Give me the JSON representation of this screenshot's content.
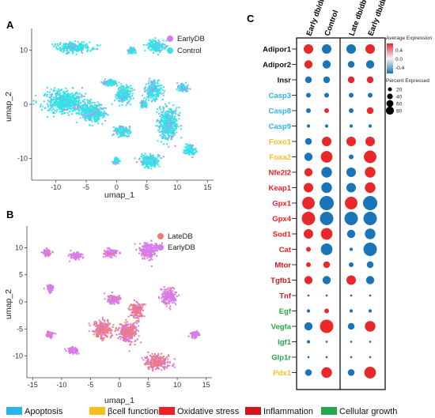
{
  "panels": {
    "a": "A",
    "b": "B",
    "c": "C"
  },
  "chart_data": [
    {
      "type": "scatter",
      "panel": "A",
      "xlabel": "umap_1",
      "ylabel": "umap_2",
      "xlim": [
        -14,
        16
      ],
      "ylim": [
        -14,
        14
      ],
      "xticks": [
        -10,
        -5,
        0,
        5,
        10,
        15
      ],
      "yticks": [
        10,
        0,
        -10
      ],
      "legend": [
        {
          "name": "EarlyDB",
          "color": "#d67cf0"
        },
        {
          "name": "Control",
          "color": "#33e4e6"
        }
      ],
      "clusters": [
        {
          "x": -8.5,
          "y": 0.5,
          "sx": 2.8,
          "sy": 1.8
        },
        {
          "x": -4,
          "y": -1.5,
          "sx": 1.8,
          "sy": 1.6
        },
        {
          "x": -7,
          "y": 10.5,
          "sx": 2.6,
          "sy": 0.8
        },
        {
          "x": 6.5,
          "y": 10.8,
          "sx": 1.3,
          "sy": 0.9
        },
        {
          "x": 6,
          "y": 2.5,
          "sx": 1.2,
          "sy": 1.6
        },
        {
          "x": 1.2,
          "y": 1.8,
          "sx": 1.2,
          "sy": 1.4
        },
        {
          "x": -1,
          "y": 4,
          "sx": 1.1,
          "sy": 0.5
        },
        {
          "x": 8.5,
          "y": -3.5,
          "sx": 1.5,
          "sy": 2.5
        },
        {
          "x": 1,
          "y": -5,
          "sx": 1.2,
          "sy": 0.8
        },
        {
          "x": 5.5,
          "y": -10.5,
          "sx": 1.5,
          "sy": 1.1
        },
        {
          "x": 0,
          "y": -10.5,
          "sx": 0.5,
          "sy": 0.5
        },
        {
          "x": 12,
          "y": -8.5,
          "sx": 0.8,
          "sy": 0.9
        },
        {
          "x": 11,
          "y": 3,
          "sx": 0.8,
          "sy": 0.6
        },
        {
          "x": 2.5,
          "y": 10,
          "sx": 0.5,
          "sy": 0.5
        },
        {
          "x": 4.5,
          "y": 0,
          "sx": 0.5,
          "sy": 0.5
        }
      ]
    },
    {
      "type": "scatter",
      "panel": "B",
      "xlabel": "umap_1",
      "ylabel": "umap_2",
      "xlim": [
        -16,
        16
      ],
      "ylim": [
        -14,
        14
      ],
      "xticks": [
        -15,
        -10,
        -5,
        0,
        5,
        10,
        15
      ],
      "yticks": [
        10,
        5,
        0,
        -5,
        -10
      ],
      "legend": [
        {
          "name": "LateDB",
          "color": "#f07a70"
        },
        {
          "name": "EarlyDB",
          "color": "#d67cf0"
        }
      ],
      "clusters": [
        {
          "x": -12.5,
          "y": 9,
          "sx": 0.7,
          "sy": 0.5
        },
        {
          "x": -7.5,
          "y": 8.5,
          "sx": 1.0,
          "sy": 0.6
        },
        {
          "x": -1.5,
          "y": 9,
          "sx": 1.1,
          "sy": 0.6
        },
        {
          "x": 5,
          "y": 9.5,
          "sx": 1.4,
          "sy": 1.3
        },
        {
          "x": -3,
          "y": -5,
          "sx": 1.4,
          "sy": 1.4
        },
        {
          "x": 1.5,
          "y": -5.5,
          "sx": 1.5,
          "sy": 1.6
        },
        {
          "x": -1,
          "y": 0.5,
          "sx": 1.0,
          "sy": 0.7
        },
        {
          "x": 6.5,
          "y": -11,
          "sx": 1.8,
          "sy": 1.2
        },
        {
          "x": 3,
          "y": -1.5,
          "sx": 1.0,
          "sy": 1.3
        },
        {
          "x": -8,
          "y": -9,
          "sx": 0.8,
          "sy": 0.6
        },
        {
          "x": -12,
          "y": -6,
          "sx": 0.6,
          "sy": 0.5
        },
        {
          "x": 8.5,
          "y": 1,
          "sx": 1.2,
          "sy": 1.4
        },
        {
          "x": -12,
          "y": 2.5,
          "sx": 0.6,
          "sy": 0.5
        },
        {
          "x": 13,
          "y": -6,
          "sx": 0.6,
          "sy": 0.5
        }
      ]
    },
    {
      "type": "dotplot",
      "panel": "C",
      "columns": [
        "Early db/db",
        "Control",
        "Late db/db",
        "Early db/db"
      ],
      "genes": [
        {
          "name": "Adipor1",
          "category": "none",
          "values": [
            [
              0.4,
              40
            ],
            [
              -0.4,
              40
            ],
            [
              -0.4,
              40
            ],
            [
              0.4,
              40
            ]
          ]
        },
        {
          "name": "Adipor2",
          "category": "none",
          "values": [
            [
              0.4,
              30
            ],
            [
              -0.4,
              30
            ],
            [
              -0.4,
              20
            ],
            [
              -0.4,
              30
            ]
          ]
        },
        {
          "name": "Insr",
          "category": "none",
          "values": [
            [
              -0.4,
              20
            ],
            [
              -0.4,
              20
            ],
            [
              0.4,
              20
            ],
            [
              0.4,
              20
            ]
          ]
        },
        {
          "name": "Casp3",
          "category": "apoptosis",
          "values": [
            [
              -0.4,
              10
            ],
            [
              -0.4,
              10
            ],
            [
              -0.4,
              10
            ],
            [
              -0.4,
              10
            ]
          ]
        },
        {
          "name": "Casp8",
          "category": "apoptosis",
          "values": [
            [
              -0.4,
              10
            ],
            [
              0.4,
              10
            ],
            [
              -0.4,
              10
            ],
            [
              0.4,
              20
            ]
          ]
        },
        {
          "name": "Casp9",
          "category": "apoptosis",
          "values": [
            [
              -0.4,
              5
            ],
            [
              -0.4,
              5
            ],
            [
              -0.4,
              5
            ],
            [
              -0.4,
              5
            ]
          ]
        },
        {
          "name": "Foxo1",
          "category": "bcell",
          "values": [
            [
              -0.4,
              20
            ],
            [
              0.4,
              40
            ],
            [
              0.4,
              40
            ],
            [
              0.4,
              40
            ]
          ]
        },
        {
          "name": "Foxa2",
          "category": "bcell",
          "values": [
            [
              -0.4,
              30
            ],
            [
              0.4,
              60
            ],
            [
              -0.4,
              10
            ],
            [
              0.4,
              70
            ]
          ]
        },
        {
          "name": "Nfe2l2",
          "category": "oxidative",
          "values": [
            [
              0.4,
              30
            ],
            [
              -0.4,
              50
            ],
            [
              -0.4,
              40
            ],
            [
              0.4,
              50
            ]
          ]
        },
        {
          "name": "Keap1",
          "category": "oxidative",
          "values": [
            [
              0.4,
              40
            ],
            [
              -0.4,
              50
            ],
            [
              -0.4,
              40
            ],
            [
              0.4,
              50
            ]
          ]
        },
        {
          "name": "Gpx1",
          "category": "oxidative",
          "values": [
            [
              0.4,
              70
            ],
            [
              -0.4,
              90
            ],
            [
              0.4,
              70
            ],
            [
              -0.4,
              90
            ]
          ]
        },
        {
          "name": "Gpx4",
          "category": "oxidative",
          "values": [
            [
              0.4,
              80
            ],
            [
              -0.4,
              80
            ],
            [
              -0.4,
              80
            ],
            [
              -0.4,
              80
            ]
          ]
        },
        {
          "name": "Sod1",
          "category": "oxidative",
          "values": [
            [
              0.4,
              40
            ],
            [
              0.4,
              60
            ],
            [
              -0.4,
              30
            ],
            [
              -0.4,
              50
            ]
          ]
        },
        {
          "name": "Cat",
          "category": "oxidative",
          "values": [
            [
              0.4,
              10
            ],
            [
              -0.4,
              60
            ],
            [
              -0.4,
              5
            ],
            [
              -0.4,
              80
            ]
          ]
        },
        {
          "name": "Mtor",
          "category": "inflammation",
          "values": [
            [
              0.4,
              10
            ],
            [
              0.4,
              20
            ],
            [
              -0.4,
              10
            ],
            [
              -0.4,
              20
            ]
          ]
        },
        {
          "name": "Tgfb1",
          "category": "inflammation",
          "values": [
            [
              0.4,
              30
            ],
            [
              -0.4,
              30
            ],
            [
              0.4,
              40
            ],
            [
              -0.4,
              30
            ]
          ]
        },
        {
          "name": "Tnf",
          "category": "inflammation",
          "values": [
            [
              -0.4,
              2
            ],
            [
              -0.4,
              2
            ],
            [
              -0.4,
              2
            ],
            [
              -0.4,
              2
            ]
          ]
        },
        {
          "name": "Egf",
          "category": "growth",
          "values": [
            [
              -0.4,
              5
            ],
            [
              0.4,
              10
            ],
            [
              -0.4,
              5
            ],
            [
              -0.4,
              5
            ]
          ]
        },
        {
          "name": "Vegfa",
          "category": "growth",
          "values": [
            [
              -0.4,
              30
            ],
            [
              0.4,
              80
            ],
            [
              -0.4,
              20
            ],
            [
              0.4,
              50
            ]
          ]
        },
        {
          "name": "Igf1",
          "category": "growth",
          "values": [
            [
              -0.4,
              5
            ],
            [
              -0.4,
              2
            ],
            [
              -0.4,
              2
            ],
            [
              -0.4,
              2
            ]
          ]
        },
        {
          "name": "Glp1r",
          "category": "growth",
          "values": [
            [
              -0.4,
              2
            ],
            [
              -0.4,
              2
            ],
            [
              -0.4,
              2
            ],
            [
              -0.4,
              2
            ]
          ]
        },
        {
          "name": "Pdx1",
          "category": "bcell",
          "values": [
            [
              -0.4,
              20
            ],
            [
              0.4,
              50
            ],
            [
              -0.4,
              20
            ],
            [
              0.4,
              60
            ]
          ]
        }
      ],
      "color_legend": {
        "title": "Average Expression",
        "ticks": [
          "0.4",
          "0.0",
          "-0.4"
        ],
        "high": "#e8292a",
        "mid": "#f4f4f4",
        "low": "#1a74b8"
      },
      "size_legend": {
        "title": "Percent Expressed",
        "values": [
          20,
          40,
          60,
          80
        ]
      }
    }
  ],
  "categories": [
    {
      "key": "apoptosis",
      "label": "Apoptosis",
      "color": "#29b4ea"
    },
    {
      "key": "bcell",
      "label": "βcell function",
      "color": "#f9be1e"
    },
    {
      "key": "oxidative",
      "label": "Oxidative stress",
      "color": "#ec2027"
    },
    {
      "key": "inflammation",
      "label": "Inflammation",
      "color": "#d5151c"
    },
    {
      "key": "growth",
      "label": "Cellular growth",
      "color": "#22a84a"
    }
  ],
  "none_color": "#111111"
}
